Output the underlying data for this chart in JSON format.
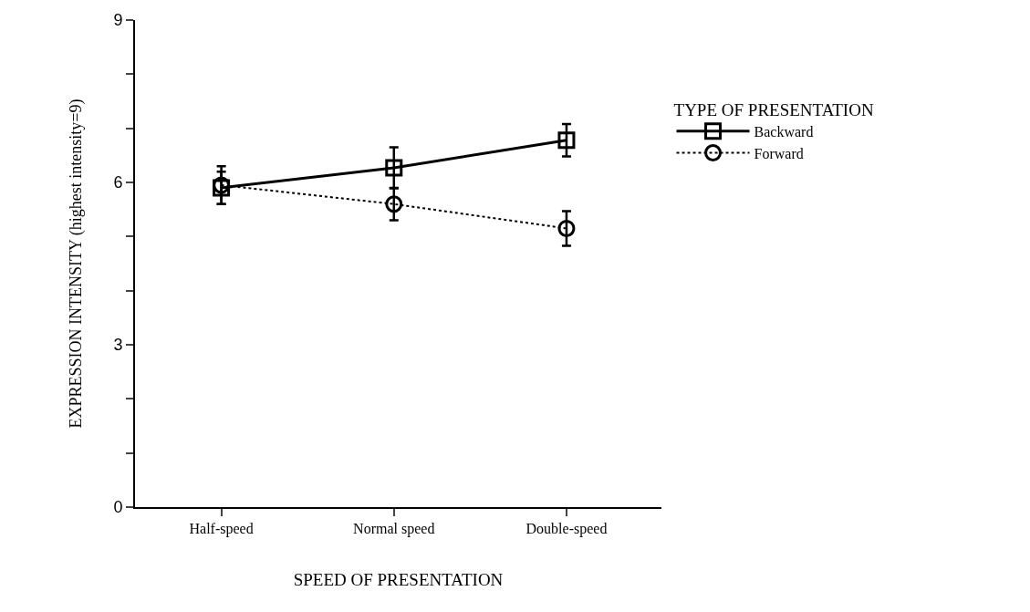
{
  "chart_data": {
    "type": "line",
    "xlabel": "SPEED OF PRESENTATION",
    "ylabel": "EXPRESSION INTENSITY (highest intensity=9)",
    "legend_title": "TYPE OF PRESENTATION",
    "categories": [
      "Half-speed",
      "Normal speed",
      "Double-speed"
    ],
    "series": [
      {
        "name": "Backward",
        "color": "#000000",
        "values": [
          5.9,
          6.27,
          6.78
        ],
        "errors": [
          0.3,
          0.38,
          0.3
        ],
        "marker": "square",
        "line_style": "solid"
      },
      {
        "name": "Forward",
        "color": "#000000",
        "values": [
          5.95,
          5.6,
          5.15
        ],
        "errors": [
          0.35,
          0.3,
          0.32
        ],
        "marker": "circle",
        "line_style": "dotted"
      }
    ],
    "ylim": [
      0,
      9
    ],
    "yticks": [
      0,
      {
        "value": 1,
        "label": null
      },
      {
        "value": 2,
        "label": null
      },
      3,
      {
        "value": 4,
        "label": null
      },
      {
        "value": 5,
        "label": null
      },
      6,
      {
        "value": 7,
        "label": null
      },
      {
        "value": 8,
        "label": null
      },
      9
    ],
    "legend": "right"
  }
}
